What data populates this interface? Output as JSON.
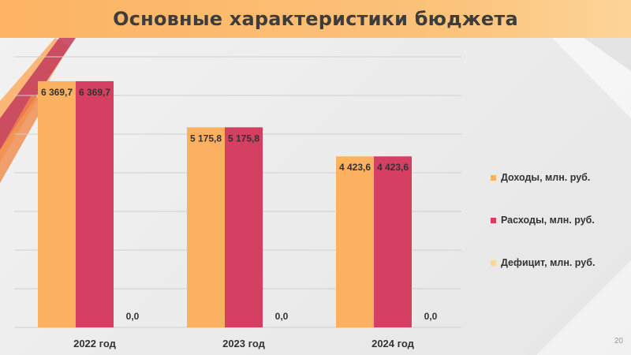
{
  "title": "Основные характеристики бюджета",
  "page_number": "20",
  "colors": {
    "title_bar": "#fcb363",
    "income": "#fbb15f",
    "expense": "#d43f62",
    "deficit": "#fbd897",
    "grid": "#cfcfcf"
  },
  "chart_data": {
    "type": "bar",
    "categories": [
      "2022 год",
      "2023 год",
      "2024 год"
    ],
    "series": [
      {
        "name": "Доходы, млн. руб.",
        "values": [
          6369.7,
          5175.8,
          4423.6
        ],
        "labels": [
          "6 369,7",
          "5 175,8",
          "4 423,6"
        ],
        "color": "#fbb15f"
      },
      {
        "name": "Расходы, млн. руб.",
        "values": [
          6369.7,
          5175.8,
          4423.6
        ],
        "labels": [
          "6 369,7",
          "5 175,8",
          "4 423,6"
        ],
        "color": "#d43f62"
      },
      {
        "name": "Дефицит, млн. руб.",
        "values": [
          0.0,
          0.0,
          0.0
        ],
        "labels": [
          "0,0",
          "0,0",
          "0,0"
        ],
        "color": "#fbd897"
      }
    ],
    "ylim": [
      0,
      7000
    ],
    "grid": true,
    "legend": "right"
  }
}
